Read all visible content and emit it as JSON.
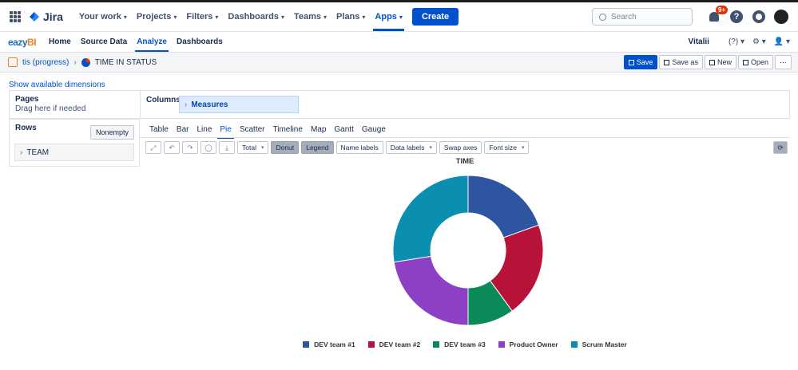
{
  "topnav": {
    "logo": "Jira",
    "items": [
      {
        "label": "Your work",
        "active": false
      },
      {
        "label": "Projects",
        "active": false
      },
      {
        "label": "Filters",
        "active": false
      },
      {
        "label": "Dashboards",
        "active": false
      },
      {
        "label": "Teams",
        "active": false
      },
      {
        "label": "Plans",
        "active": false
      },
      {
        "label": "Apps",
        "active": true
      }
    ],
    "create": "Create",
    "search_placeholder": "Search",
    "notif_badge": "9+"
  },
  "subnav": {
    "logo_left": "eazy",
    "logo_right": "BI",
    "items": [
      "Home",
      "Source Data",
      "Analyze",
      "Dashboards"
    ],
    "active": "Analyze",
    "user": "Vitalii"
  },
  "breadcrumb": {
    "cube": "tis (progress)",
    "report": "TIME IN STATUS"
  },
  "actions": {
    "save": "Save",
    "save_as": "Save as",
    "new": "New",
    "open": "Open",
    "more": "···"
  },
  "show_dims": "Show available dimensions",
  "pages": {
    "title": "Pages",
    "hint": "Drag here if needed"
  },
  "columns": {
    "title": "Columns",
    "measures": "Measures"
  },
  "rows": {
    "title": "Rows",
    "nonempty": "Nonempty",
    "team": "TEAM"
  },
  "chart_tabs": [
    "Table",
    "Bar",
    "Line",
    "Pie",
    "Scatter",
    "Timeline",
    "Map",
    "Gantt",
    "Gauge"
  ],
  "active_tab": "Pie",
  "toolbar": {
    "total": "Total",
    "donut": "Donut",
    "legend": "Legend",
    "name_labels": "Name labels",
    "data_labels": "Data labels",
    "swap_axes": "Swap axes",
    "font_size": "Font size"
  },
  "colors": {
    "accent": "#0052cc"
  },
  "chart_data": {
    "type": "pie",
    "donut": true,
    "title": "TIME",
    "legend_position": "bottom",
    "series": [
      {
        "name": "DEV team #1",
        "value": 19.5,
        "color": "#2e56a0"
      },
      {
        "name": "DEV team #2",
        "value": 20.5,
        "color": "#b71338"
      },
      {
        "name": "DEV team #3",
        "value": 10.0,
        "color": "#0a8a58"
      },
      {
        "name": "Product Owner",
        "value": 22.5,
        "color": "#8e40c4"
      },
      {
        "name": "Scrum Master",
        "value": 27.5,
        "color": "#0a8fb1"
      }
    ]
  }
}
